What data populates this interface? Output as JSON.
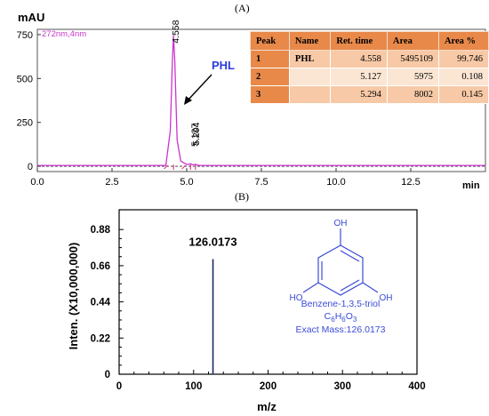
{
  "panel_a_label": "(A)",
  "panel_b_label": "(B)",
  "colors": {
    "trace_a": "#cc33cc",
    "marker_a": "#e0207a",
    "trace_b": "#1a2a6c",
    "accent": "#2b3cdd",
    "table_header": "#e8894a"
  },
  "chart_data": [
    {
      "type": "line",
      "ylabel": "mAU",
      "xlabel": "min",
      "channel_label": "272nm,4nm",
      "xlim": [
        0.0,
        15.0
      ],
      "ylim": [
        -30,
        780
      ],
      "xticks": [
        "0.0",
        "2.5",
        "5.0",
        "7.5",
        "10.0",
        "12.5"
      ],
      "yticks": [
        "0",
        "250",
        "500",
        "750"
      ],
      "x": [
        0,
        4.3,
        4.45,
        4.52,
        4.558,
        4.6,
        4.68,
        4.8,
        5.0,
        5.127,
        5.2,
        5.294,
        5.4,
        15
      ],
      "y": [
        5,
        5,
        200,
        600,
        745,
        600,
        150,
        30,
        10,
        14,
        8,
        11,
        5,
        5
      ],
      "peak_labels": [
        {
          "x": 4.558,
          "label": "4.558"
        },
        {
          "x": 5.127,
          "label": "5.127"
        },
        {
          "x": 5.294,
          "label": "5.294"
        }
      ],
      "annotation": "PHL",
      "table": {
        "headers": [
          "Peak",
          "Name",
          "Ret. time",
          "Area",
          "Area %"
        ],
        "rows": [
          [
            "1",
            "PHL",
            "4.558",
            "5495109",
            "99.746"
          ],
          [
            "2",
            "",
            "5.127",
            "5975",
            "0.108"
          ],
          [
            "3",
            "",
            "5.294",
            "8002",
            "0.145"
          ]
        ]
      }
    },
    {
      "type": "bar",
      "ylabel": "Inten. (X10,000,000)",
      "xlabel": "m/z",
      "xlim": [
        0,
        400
      ],
      "ylim": [
        0,
        1.0
      ],
      "xticks": [
        "0",
        "100",
        "200",
        "300",
        "400"
      ],
      "yticks": [
        "0",
        "0.22",
        "0.44",
        "0.66",
        "0.88"
      ],
      "x": [
        126.0173
      ],
      "y": [
        0.7
      ],
      "peak_label": "126.0173",
      "compound": {
        "name": "Benzene-1,3,5-triol",
        "formula_parts": [
          "C",
          "6",
          "H",
          "6",
          "O",
          "3"
        ],
        "mass_label": "Exact Mass:126.0173",
        "oh_label": "OH",
        "ho_label": "HO"
      }
    }
  ]
}
